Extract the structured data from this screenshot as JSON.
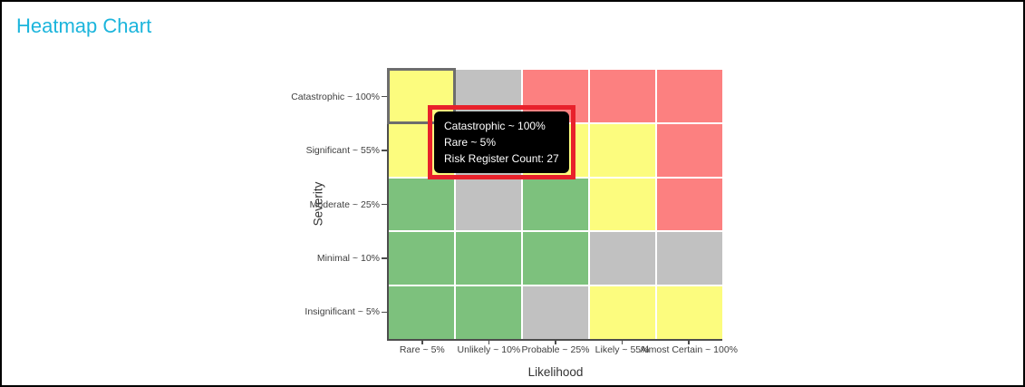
{
  "page": {
    "title": "Heatmap Chart"
  },
  "colors": {
    "title": "#1cb5dc",
    "axis_line": "#4d4d4d",
    "tick_label": "#3f3f3f",
    "axis_title": "#333333",
    "grid_line": "#ffffff",
    "selected_cell_border": "#6d6d6d",
    "tooltip_border": "#e8212b",
    "tooltip_background": "#000000",
    "tooltip_text": "#ffffff"
  },
  "chart_data": {
    "type": "heatmap",
    "title": "Heatmap Chart",
    "xlabel": "Likelihood",
    "ylabel": "Severity",
    "x_categories": [
      "Rare ~ 5%",
      "Unlikely ~ 10%",
      "Probable ~ 25%",
      "Likely ~ 55%",
      "Almost Certain ~ 100%"
    ],
    "y_categories": [
      "Catastrophic ~ 100%",
      "Significant ~ 55%",
      "Moderate ~ 25%",
      "Minimal ~ 10%",
      "Insignificant ~ 5%"
    ],
    "palette": {
      "green": "#7dc17d",
      "yellow": "#fcfc7e",
      "gray": "#c1c1c1",
      "red": "#fc8080"
    },
    "cells": [
      [
        "yellow",
        "gray",
        "red",
        "red",
        "red"
      ],
      [
        "yellow",
        "gray",
        "yellow",
        "yellow",
        "red"
      ],
      [
        "green",
        "gray",
        "green",
        "yellow",
        "red"
      ],
      [
        "green",
        "green",
        "green",
        "gray",
        "gray"
      ],
      [
        "green",
        "green",
        "gray",
        "yellow",
        "yellow"
      ]
    ],
    "selected_cell": {
      "row": 0,
      "col": 0,
      "y_label": "Catastrophic ~ 100%",
      "x_label": "Rare ~ 5%",
      "risk_register_count": 27
    },
    "legend": false,
    "grid": true
  },
  "tooltip": {
    "line1": "Catastrophic ~ 100%",
    "line2": "Rare ~ 5%",
    "line3": "Risk Register Count: 27"
  }
}
